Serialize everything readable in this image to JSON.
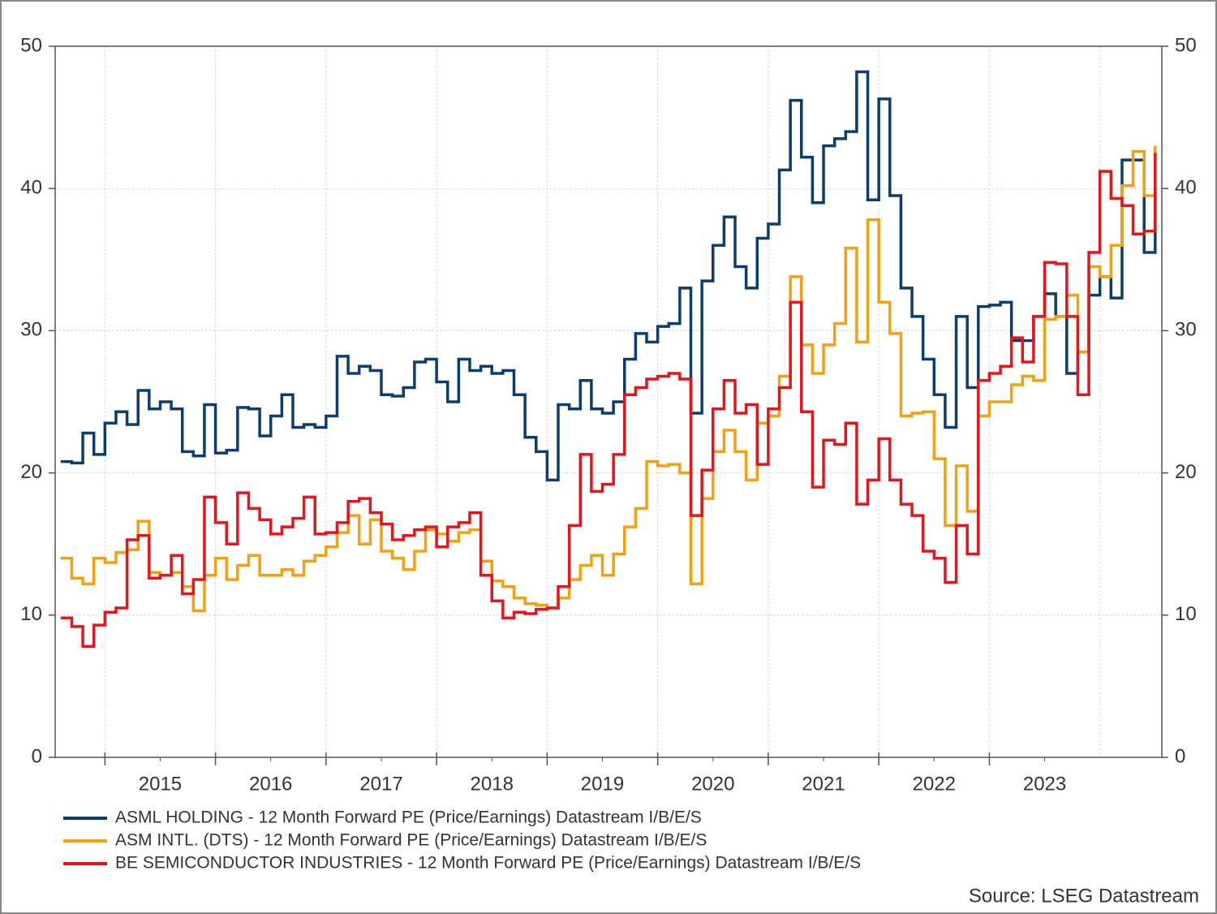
{
  "chart_data": {
    "type": "step-line",
    "x": [
      2014.6,
      2014.7,
      2014.8,
      2014.9,
      2015.0,
      2015.1,
      2015.2,
      2015.3,
      2015.4,
      2015.5,
      2015.6,
      2015.7,
      2015.8,
      2015.9,
      2016.0,
      2016.1,
      2016.2,
      2016.3,
      2016.4,
      2016.5,
      2016.6,
      2016.7,
      2016.8,
      2016.9,
      2017.0,
      2017.1,
      2017.2,
      2017.3,
      2017.4,
      2017.5,
      2017.6,
      2017.7,
      2017.8,
      2017.9,
      2018.0,
      2018.1,
      2018.2,
      2018.3,
      2018.4,
      2018.5,
      2018.6,
      2018.7,
      2018.8,
      2018.9,
      2019.0,
      2019.1,
      2019.2,
      2019.3,
      2019.4,
      2019.5,
      2019.6,
      2019.7,
      2019.8,
      2019.9,
      2020.0,
      2020.1,
      2020.2,
      2020.3,
      2020.4,
      2020.5,
      2020.6,
      2020.7,
      2020.8,
      2020.9,
      2021.0,
      2021.1,
      2021.2,
      2021.3,
      2021.4,
      2021.5,
      2021.6,
      2021.7,
      2021.8,
      2021.9,
      2022.0,
      2022.1,
      2022.2,
      2022.3,
      2022.4,
      2022.5,
      2022.6,
      2022.7,
      2022.8,
      2022.9,
      2023.0,
      2023.1,
      2023.2,
      2023.3,
      2023.4,
      2023.5,
      2023.6,
      2023.7,
      2023.8,
      2023.9,
      2024.0,
      2024.1,
      2024.2,
      2024.3,
      2024.4,
      2024.5
    ],
    "series": [
      {
        "name": "ASML HOLDING - 12 Month Forward PE (Price/Earnings) Datastream I/B/E/S",
        "color": "#0b3d6e",
        "values": [
          20.8,
          20.7,
          22.8,
          21.3,
          23.5,
          24.3,
          23.4,
          25.8,
          24.5,
          25,
          24.5,
          21.5,
          21.2,
          24.8,
          21.4,
          21.6,
          24.6,
          24.5,
          22.6,
          24,
          25.5,
          23.2,
          23.4,
          23.2,
          24,
          28.2,
          27,
          27.5,
          27.2,
          25.5,
          25.4,
          26,
          27.8,
          28,
          26.4,
          25,
          28,
          27.2,
          27.5,
          27,
          27.2,
          25.5,
          22.5,
          21.5,
          19.5,
          24.8,
          24.5,
          26.5,
          24.5,
          24.2,
          25,
          28,
          29.8,
          29.2,
          30.3,
          30.5,
          33,
          24.2,
          33.5,
          36,
          38,
          34.5,
          33,
          36.5,
          37.5,
          41.3,
          46.2,
          42.2,
          39,
          43,
          43.5,
          44,
          48.2,
          39.2,
          46.3,
          39.5,
          33,
          31,
          28,
          25.5,
          23.2,
          31,
          26,
          31.7,
          31.8,
          32,
          29.3,
          29.3,
          31,
          32.6,
          31,
          27,
          28.5,
          32.5,
          33.8,
          32.3,
          42,
          42,
          35.5,
          40
        ]
      },
      {
        "name": "ASM INTL. (DTS) - 12 Month Forward PE (Price/Earnings) Datastream I/B/E/S",
        "color": "#f5a00f",
        "values": [
          14,
          12.6,
          12.2,
          14,
          13.7,
          14.4,
          14.6,
          16.6,
          13,
          12.8,
          13,
          12,
          10.3,
          12.8,
          14,
          12.5,
          13.5,
          14.2,
          12.8,
          12.8,
          13.2,
          12.8,
          13.8,
          14.2,
          14.8,
          15.8,
          17,
          15,
          16.7,
          14.5,
          14,
          13.2,
          14.5,
          16,
          15.7,
          15.2,
          15.8,
          16,
          13.8,
          12.4,
          12,
          11.2,
          10.8,
          10.7,
          10.5,
          11.2,
          12.5,
          13.5,
          14.2,
          12.8,
          14.3,
          16.2,
          17.5,
          20.8,
          20.5,
          20.6,
          20,
          12.2,
          18.2,
          21.5,
          23,
          21.5,
          19.5,
          23.5,
          24,
          26.8,
          33.8,
          29,
          27,
          29,
          30.5,
          35.8,
          29.2,
          37.8,
          32,
          29.8,
          24,
          24.2,
          24.3,
          21,
          16.3,
          20.5,
          17.3,
          24,
          25,
          25,
          26.2,
          26.8,
          26.5,
          30.8,
          31,
          32.5,
          28.5,
          34.5,
          33.8,
          36,
          40.2,
          42.6,
          39.5,
          43
        ]
      },
      {
        "name": "BE SEMICONDUCTOR INDUSTRIES - 12 Month Forward PE (Price/Earnings) Datastream I/B/E/S",
        "color": "#e8141c",
        "values": [
          9.8,
          9.2,
          7.8,
          9.3,
          10.2,
          10.5,
          15.3,
          15.6,
          12.6,
          12.8,
          14.2,
          11.5,
          12.5,
          18.3,
          16.5,
          15,
          18.6,
          17.5,
          16.7,
          15.7,
          16.2,
          16.8,
          18.3,
          15.7,
          15.8,
          16.5,
          18,
          18.2,
          17.2,
          16.4,
          15.3,
          15.6,
          16,
          16.2,
          14.8,
          16.2,
          16.5,
          17.2,
          12.8,
          11,
          9.8,
          10.2,
          10.1,
          10.4,
          10.5,
          12,
          16.3,
          21.3,
          18.7,
          19.2,
          21.3,
          25.5,
          26,
          26.6,
          26.8,
          27,
          26.6,
          17,
          20.2,
          24.5,
          26.5,
          24.2,
          24.8,
          20.6,
          24.5,
          26,
          32,
          24.3,
          19,
          22.3,
          22,
          23.5,
          17.8,
          19.5,
          22.4,
          19.5,
          17.8,
          17,
          14.5,
          14,
          12.3,
          16.3,
          14.3,
          26.5,
          27,
          27.5,
          29.5,
          27.8,
          31,
          34.8,
          34.7,
          31,
          25.5,
          35.5,
          41.2,
          39.3,
          38.8,
          36.8,
          37,
          42.5
        ]
      }
    ],
    "xlim": [
      2014.55,
      2024.56
    ],
    "xticks": [
      2015,
      2016,
      2017,
      2018,
      2019,
      2020,
      2021,
      2022,
      2023
    ],
    "ylim": [
      0,
      50
    ],
    "yticks": [
      0,
      10,
      20,
      30,
      40,
      50
    ],
    "y2lim": [
      0,
      50
    ],
    "y2ticks": [
      0,
      10,
      20,
      30,
      40,
      50
    ],
    "grid": true,
    "legend": "bottom",
    "source": "Source: LSEG Datastream"
  }
}
